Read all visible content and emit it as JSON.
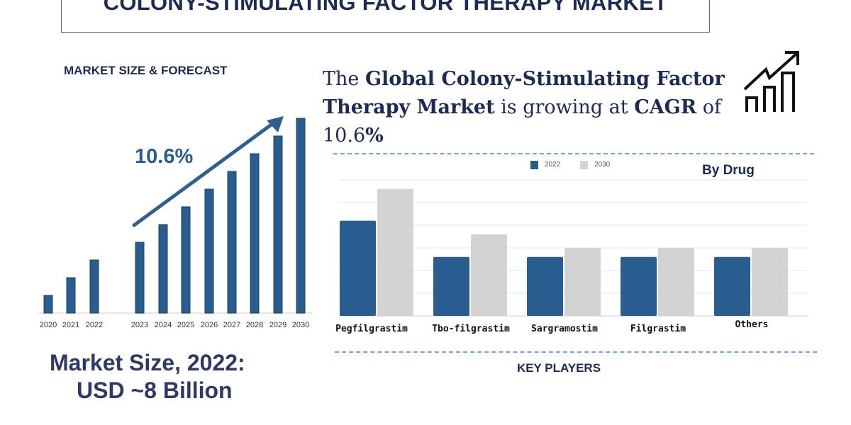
{
  "title": "COLONY-STIMULATING FACTOR THERAPY MARKET",
  "left_heading": "MARKET SIZE & FORECAST",
  "headline": {
    "p1": "The ",
    "b1": "Global Colony-Stimulating Factor Therapy Market",
    "p2": " is growing at ",
    "b2": "CAGR",
    "p3": " of 10.6",
    "b3": "%"
  },
  "market_size": {
    "line1": "Market Size, 2022:",
    "line2": "USD ~8 Billion"
  },
  "key_players": "KEY PLAYERS",
  "icons": [
    "growth-chart-icon",
    "trend-arrow-icon"
  ],
  "colors": {
    "navy": "#1c2a56",
    "bar_blue": "#2a5d8f",
    "bar_gray": "#d3d3d3",
    "dash": "#6fa8d8"
  },
  "chart_data": [
    {
      "type": "bar",
      "title": "",
      "categories": [
        "2020",
        "2021",
        "2022",
        "2023",
        "2024",
        "2025",
        "2026",
        "2027",
        "2028",
        "2029",
        "2030"
      ],
      "values": [
        1,
        2,
        3,
        4,
        5,
        6,
        7,
        8,
        9,
        10,
        11
      ],
      "annotation": "10.6%",
      "grid": false
    },
    {
      "type": "bar",
      "title": "By Drug",
      "categories": [
        "Pegfilgrastim",
        "Tbo-filgrastim",
        "Sargramostim",
        "Filgrastim",
        "Others"
      ],
      "series": [
        {
          "name": "2022",
          "values": [
            4.2,
            2.6,
            2.6,
            2.6,
            2.6
          ]
        },
        {
          "name": "2030",
          "values": [
            5.6,
            3.6,
            3.0,
            3.0,
            3.0
          ]
        }
      ],
      "ylim": [
        0,
        6
      ],
      "grid": true,
      "legend": "top"
    }
  ]
}
